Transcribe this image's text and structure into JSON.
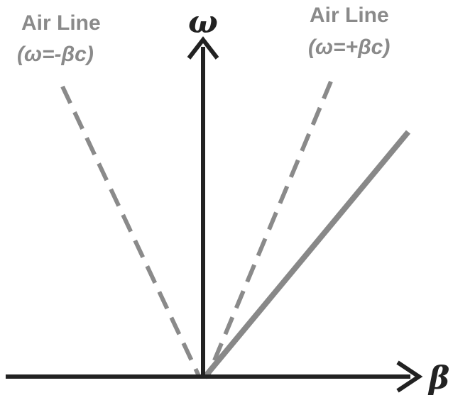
{
  "diagram": {
    "axes": {
      "vertical_label": "ω",
      "horizontal_label": "β"
    },
    "lines": {
      "left_air_line": {
        "title": "Air Line",
        "equation": "(ω=-βc)",
        "style": "dashed"
      },
      "right_air_line": {
        "title": "Air Line",
        "equation": "(ω=+βc)",
        "style": "dashed"
      },
      "solid_line": {
        "style": "solid"
      }
    },
    "colors": {
      "axis": "#222222",
      "air_line": "#8a8a8a",
      "solid_line": "#888888",
      "background": "#ffffff"
    }
  }
}
